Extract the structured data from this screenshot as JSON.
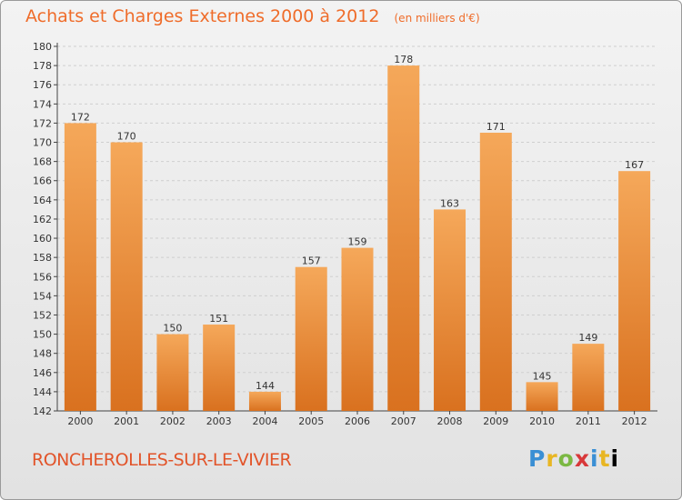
{
  "header": {
    "title": "Achats et Charges Externes 2000 à 2012",
    "subtitle": "(en milliers d'€)"
  },
  "footer": {
    "commune": "RONCHEROLLES-SUR-LE-VIVIER",
    "logo_letters": [
      "P",
      "r",
      "o",
      "x",
      "i",
      "t",
      "i"
    ]
  },
  "colors": {
    "title": "#ef6c2a",
    "bar_top": "#f5a85a",
    "bar_bottom": "#d9711f",
    "grid": "#cfcfcf",
    "axis": "#444444"
  },
  "chart_data": {
    "type": "bar",
    "title": "Achats et Charges Externes 2000 à 2012",
    "subtitle": "(en milliers d'€)",
    "categories": [
      "2000",
      "2001",
      "2002",
      "2003",
      "2004",
      "2005",
      "2006",
      "2007",
      "2008",
      "2009",
      "2010",
      "2011",
      "2012"
    ],
    "values": [
      172,
      170,
      150,
      151,
      144,
      157,
      159,
      178,
      163,
      171,
      145,
      149,
      167
    ],
    "ylim": [
      142,
      180
    ],
    "yticks": [
      142,
      144,
      146,
      148,
      150,
      152,
      154,
      156,
      158,
      160,
      162,
      164,
      166,
      168,
      170,
      172,
      174,
      176,
      178,
      180
    ],
    "grid": true,
    "data_labels": true
  }
}
